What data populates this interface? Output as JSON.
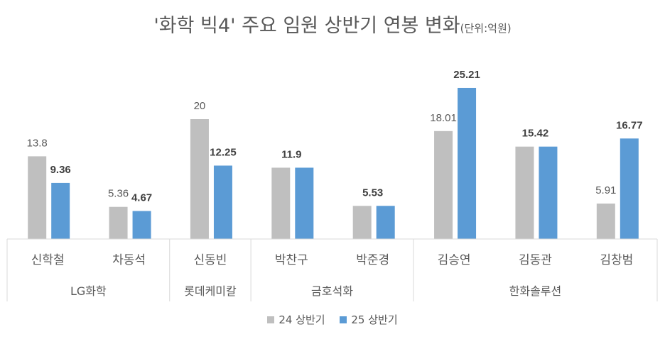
{
  "chart_data": {
    "type": "bar",
    "title": "'화학 빅4' 주요 임원 상반기 연봉 변화",
    "unit_note": "(단위:억원)",
    "categories": [
      "신학철",
      "차동석",
      "신동빈",
      "박찬구",
      "박준경",
      "김승연",
      "김동관",
      "김창범"
    ],
    "groups": [
      {
        "label": "LG화학",
        "members": [
          "신학철",
          "차동석"
        ]
      },
      {
        "label": "롯데케미칼",
        "members": [
          "신동빈"
        ]
      },
      {
        "label": "금호석화",
        "members": [
          "박찬구",
          "박준경"
        ]
      },
      {
        "label": "한화솔루션",
        "members": [
          "김승연",
          "김동관",
          "김창범"
        ]
      }
    ],
    "series": [
      {
        "name": "24 상반기",
        "color": "#bfbfbf",
        "values": [
          13.8,
          5.36,
          20,
          11.9,
          5.53,
          18.01,
          15.42,
          5.91
        ],
        "data_labels": [
          "13.8",
          "5.36",
          "20",
          null,
          null,
          "18.01",
          null,
          "5.91"
        ]
      },
      {
        "name": "25 상반기",
        "color": "#5b9bd5",
        "values": [
          9.36,
          4.67,
          12.25,
          11.9,
          5.53,
          25.21,
          15.42,
          16.77
        ],
        "data_labels": [
          "9.36",
          "4.67",
          "12.25",
          "11.9",
          "5.53",
          "25.21",
          "15.42",
          "16.77"
        ]
      }
    ],
    "ylim": [
      0,
      27
    ],
    "grid": false,
    "legend_position": "bottom"
  }
}
